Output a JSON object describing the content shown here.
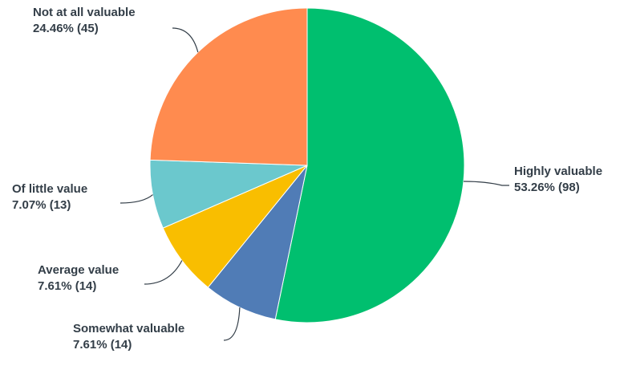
{
  "chart_data": {
    "type": "pie",
    "title": "",
    "slices": [
      {
        "label": "Highly valuable",
        "value_text": "53.26% (98)",
        "percent": 53.26,
        "count": 98,
        "color": "#00bf6f"
      },
      {
        "label": "Somewhat valuable",
        "value_text": "7.61% (14)",
        "percent": 7.61,
        "count": 14,
        "color": "#507cb6"
      },
      {
        "label": "Average value",
        "value_text": "7.61% (14)",
        "percent": 7.61,
        "count": 14,
        "color": "#f9be00"
      },
      {
        "label": "Of little value",
        "value_text": "7.07% (13)",
        "percent": 7.07,
        "count": 13,
        "color": "#6bc8cd"
      },
      {
        "label": "Not at all valuable",
        "value_text": "24.46% (45)",
        "percent": 24.46,
        "count": 45,
        "color": "#ff8b4f"
      }
    ],
    "legend": "none",
    "labels": "outside with leader lines"
  }
}
